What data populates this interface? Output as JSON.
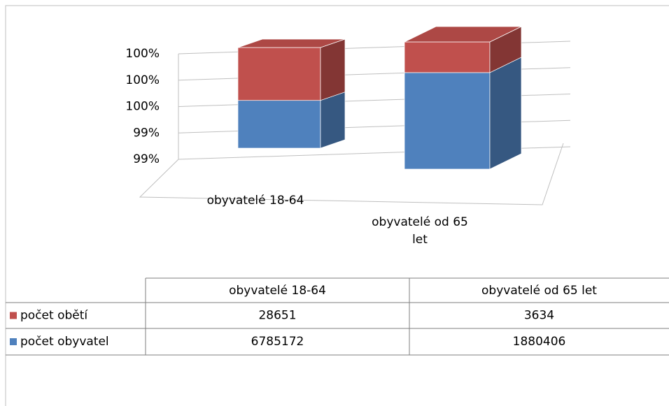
{
  "chart_data": {
    "type": "bar3d_stacked_percent",
    "categories": [
      "obyvatelé 18-64",
      "obyvatelé od 65 let"
    ],
    "series": [
      {
        "name": "počet obětí",
        "color": "#c0504d",
        "values": [
          28651,
          3634
        ]
      },
      {
        "name": "počet obyvatel",
        "color": "#4f81bd",
        "values": [
          6785172,
          1880406
        ]
      }
    ],
    "ylim": [
      99.2,
      100
    ],
    "yticks": [
      {
        "value": 99.2,
        "label": "99%"
      },
      {
        "value": 99.4,
        "label": "99%"
      },
      {
        "value": 99.6,
        "label": "100%"
      },
      {
        "value": 99.8,
        "label": "100%"
      },
      {
        "value": 100,
        "label": "100%"
      }
    ],
    "grid": true
  }
}
